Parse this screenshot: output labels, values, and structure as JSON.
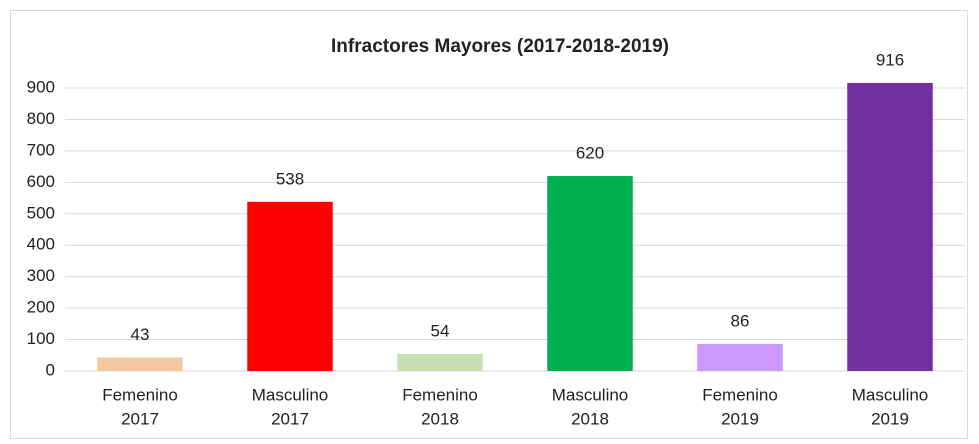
{
  "chart_data": {
    "type": "bar",
    "title": "Infractores Mayores (2017-2018-2019)",
    "categories": [
      [
        "Femenino",
        "2017"
      ],
      [
        "Masculino",
        "2017"
      ],
      [
        "Femenino",
        "2018"
      ],
      [
        "Masculino",
        "2018"
      ],
      [
        "Femenino",
        "2019"
      ],
      [
        "Masculino",
        "2019"
      ]
    ],
    "values": [
      43,
      538,
      54,
      620,
      86,
      916
    ],
    "colors": [
      "#f4c7a1",
      "#ff0000",
      "#c6e0b4",
      "#00b050",
      "#cc99ff",
      "#7030a0"
    ],
    "ylim": [
      0,
      900
    ],
    "yticks": [
      0,
      100,
      200,
      300,
      400,
      500,
      600,
      700,
      800,
      900
    ],
    "grid": true
  }
}
